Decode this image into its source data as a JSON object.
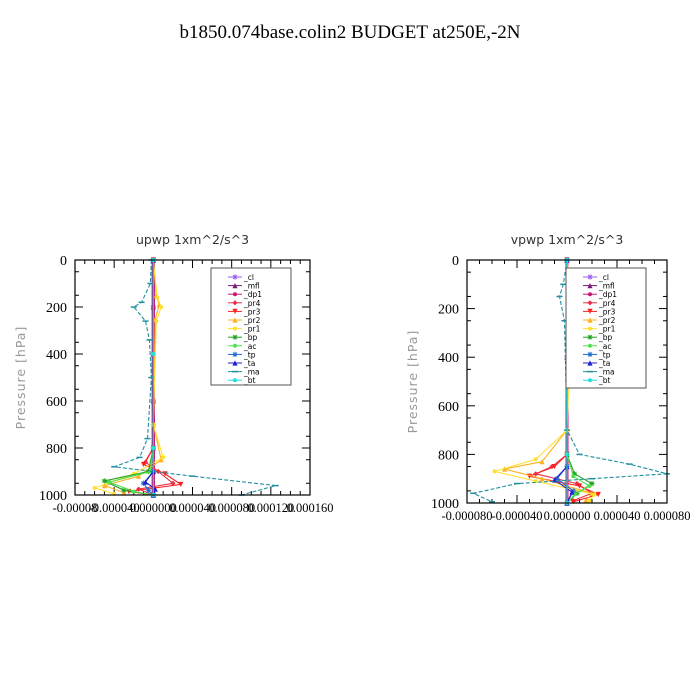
{
  "title": "b1850.074base.colin2  BUDGET at250E,-2N",
  "chart_data": [
    {
      "type": "line",
      "title": "upwp   1xm^2/s^3",
      "ylabel": "Pressure [hPa]",
      "y_axis_inverted": true,
      "ylim": [
        0,
        1000
      ],
      "yticks": [
        0,
        200,
        400,
        600,
        800,
        1000
      ],
      "xlim": [
        -8e-05,
        0.00016
      ],
      "xtick_labels": [
        "-0.00008",
        "-0.000040",
        "0.000000",
        "0.000040",
        "0.000080",
        "0.000120",
        "0.000160"
      ],
      "xtick_values": [
        -8e-05,
        -4e-05,
        0,
        4e-05,
        8e-05,
        0.00012,
        0.00016
      ],
      "legend_position": "top-right",
      "series": [
        {
          "name": "_cl",
          "color": "#9a5cf0",
          "marker": "star",
          "points": [
            [
              0,
              0
            ],
            [
              0,
              200
            ],
            [
              0,
              400
            ],
            [
              0,
              600
            ],
            [
              0,
              800
            ],
            [
              0,
              900
            ],
            [
              0,
              1000
            ]
          ]
        },
        {
          "name": "_mfl",
          "color": "#7a1a7a",
          "marker": "triangle",
          "points": [
            [
              0,
              0
            ],
            [
              0,
              200
            ],
            [
              0,
              400
            ],
            [
              0,
              600
            ],
            [
              0,
              800
            ],
            [
              0,
              900
            ],
            [
              0,
              1000
            ]
          ]
        },
        {
          "name": "_dp1",
          "color": "#c81874",
          "marker": "circle",
          "points": [
            [
              0,
              0
            ],
            [
              0,
              200
            ],
            [
              0,
              400
            ],
            [
              0,
              600
            ],
            [
              0,
              800
            ],
            [
              0,
              900
            ],
            [
              0,
              1000
            ]
          ]
        },
        {
          "name": "_pr4",
          "color": "#e8304a",
          "marker": "diamond",
          "points": [
            [
              0,
              0
            ],
            [
              0,
              700
            ],
            [
              0,
              800
            ],
            [
              -8e-06,
              860
            ],
            [
              5e-06,
              900
            ],
            [
              2e-05,
              950
            ],
            [
              -1.5e-05,
              975
            ],
            [
              0,
              1000
            ]
          ]
        },
        {
          "name": "_pr3",
          "color": "#ff2020",
          "marker": "triangle-down",
          "points": [
            [
              0,
              0
            ],
            [
              0,
              800
            ],
            [
              -1e-05,
              870
            ],
            [
              1.2e-05,
              910
            ],
            [
              2.8e-05,
              955
            ],
            [
              -2.5e-05,
              985
            ],
            [
              0,
              1000
            ]
          ]
        },
        {
          "name": "_pr2",
          "color": "#ffb020",
          "marker": "triangle",
          "points": [
            [
              0,
              0
            ],
            [
              3e-06,
              150
            ],
            [
              6e-06,
              190
            ],
            [
              2e-06,
              250
            ],
            [
              0,
              700
            ],
            [
              8e-06,
              850
            ],
            [
              -1.5e-05,
              920
            ],
            [
              -5e-05,
              960
            ],
            [
              -3e-05,
              990
            ]
          ]
        },
        {
          "name": "_pr1",
          "color": "#ffe030",
          "marker": "circle",
          "points": [
            [
              0,
              0
            ],
            [
              4e-06,
              160
            ],
            [
              8e-06,
              200
            ],
            [
              3e-06,
              260
            ],
            [
              0,
              700
            ],
            [
              1e-05,
              840
            ],
            [
              -2e-05,
              910
            ],
            [
              -6e-05,
              970
            ],
            [
              -4e-05,
              995
            ]
          ]
        },
        {
          "name": "_bp",
          "color": "#20a020",
          "marker": "star",
          "points": [
            [
              0,
              0
            ],
            [
              0,
              800
            ],
            [
              -5e-06,
              900
            ],
            [
              -5e-05,
              940
            ],
            [
              -3e-05,
              980
            ],
            [
              0,
              1000
            ]
          ]
        },
        {
          "name": "_ac",
          "color": "#50e050",
          "marker": "circle",
          "points": [
            [
              0,
              0
            ],
            [
              0,
              800
            ],
            [
              -3e-06,
              900
            ],
            [
              -4.5e-05,
              945
            ],
            [
              -2e-05,
              985
            ],
            [
              0,
              1000
            ]
          ]
        },
        {
          "name": "_tp",
          "color": "#1a6ad0",
          "marker": "star",
          "points": [
            [
              0,
              0
            ],
            [
              0,
              900
            ],
            [
              -1e-05,
              950
            ],
            [
              -5e-06,
              980
            ],
            [
              0,
              1000
            ]
          ]
        },
        {
          "name": "_ta",
          "color": "#2020d0",
          "marker": "triangle",
          "points": [
            [
              0,
              0
            ],
            [
              0,
              900
            ],
            [
              -8e-06,
              945
            ],
            [
              2e-06,
              975
            ],
            [
              0,
              1000
            ]
          ]
        },
        {
          "name": "_ma",
          "color": "#2090a0",
          "marker": "dash",
          "points": [
            [
              -2e-06,
              0
            ],
            [
              -3e-06,
              100
            ],
            [
              -1.2e-05,
              180
            ],
            [
              -2e-05,
              200
            ],
            [
              -8e-06,
              260
            ],
            [
              -4e-06,
              340
            ],
            [
              -2e-06,
              500
            ],
            [
              -6e-06,
              760
            ],
            [
              -1.4e-05,
              840
            ],
            [
              -4e-05,
              880
            ],
            [
              4e-05,
              920
            ],
            [
              0.000125,
              960
            ],
            [
              9e-05,
              1000
            ]
          ]
        },
        {
          "name": "_bt",
          "color": "#20e0e0",
          "marker": "circle",
          "points": [
            [
              0,
              0
            ],
            [
              0,
              400
            ],
            [
              0,
              800
            ],
            [
              0,
              1000
            ]
          ]
        }
      ]
    },
    {
      "type": "line",
      "title": "vpwp   1xm^2/s^3",
      "ylabel": "Pressure [hPa]",
      "y_axis_inverted": true,
      "ylim": [
        0,
        1000
      ],
      "yticks": [
        0,
        200,
        400,
        600,
        800,
        1000
      ],
      "xlim": [
        -8e-05,
        8e-05
      ],
      "xtick_labels": [
        "-0.000080",
        "-0.000040",
        "0.000000",
        "0.000040",
        "0.000080"
      ],
      "xtick_values": [
        -8e-05,
        -4e-05,
        0,
        4e-05,
        8e-05
      ],
      "legend_position": "top-right",
      "series": [
        {
          "name": "_cl",
          "color": "#9a5cf0",
          "marker": "star",
          "points": [
            [
              0,
              0
            ],
            [
              0,
              400
            ],
            [
              0,
              800
            ],
            [
              0,
              1000
            ]
          ]
        },
        {
          "name": "_mfl",
          "color": "#7a1a7a",
          "marker": "triangle",
          "points": [
            [
              0,
              0
            ],
            [
              0,
              400
            ],
            [
              0,
              800
            ],
            [
              0,
              1000
            ]
          ]
        },
        {
          "name": "_dp1",
          "color": "#c81874",
          "marker": "circle",
          "points": [
            [
              0,
              0
            ],
            [
              0,
              400
            ],
            [
              0,
              800
            ],
            [
              0,
              1000
            ]
          ]
        },
        {
          "name": "_pr4",
          "color": "#e8304a",
          "marker": "diamond",
          "points": [
            [
              0,
              0
            ],
            [
              0,
              800
            ],
            [
              -1.2e-05,
              850
            ],
            [
              -2.5e-05,
              880
            ],
            [
              8e-06,
              920
            ],
            [
              2e-05,
              960
            ],
            [
              5e-06,
              990
            ]
          ]
        },
        {
          "name": "_pr3",
          "color": "#ff2020",
          "marker": "triangle-down",
          "points": [
            [
              0,
              0
            ],
            [
              0,
              800
            ],
            [
              -1e-05,
              850
            ],
            [
              -3e-05,
              890
            ],
            [
              1e-05,
              930
            ],
            [
              2.5e-05,
              965
            ],
            [
              5e-06,
              995
            ]
          ]
        },
        {
          "name": "_pr2",
          "color": "#ffb020",
          "marker": "triangle",
          "points": [
            [
              0,
              0
            ],
            [
              2e-06,
              120
            ],
            [
              4e-06,
              200
            ],
            [
              2e-06,
              280
            ],
            [
              0,
              700
            ],
            [
              -2e-05,
              830
            ],
            [
              -5e-05,
              860
            ],
            [
              -2e-05,
              900
            ],
            [
              2e-05,
              960
            ],
            [
              1.5e-05,
              990
            ]
          ]
        },
        {
          "name": "_pr1",
          "color": "#ffe030",
          "marker": "circle",
          "points": [
            [
              0,
              0
            ],
            [
              3e-06,
              130
            ],
            [
              5e-06,
              210
            ],
            [
              3e-06,
              290
            ],
            [
              0,
              700
            ],
            [
              -2.5e-05,
              820
            ],
            [
              -5.8e-05,
              870
            ],
            [
              -2.5e-05,
              910
            ],
            [
              2.2e-05,
              965
            ],
            [
              1.8e-05,
              990
            ]
          ]
        },
        {
          "name": "_bp",
          "color": "#20a020",
          "marker": "star",
          "points": [
            [
              0,
              0
            ],
            [
              0,
              800
            ],
            [
              6e-06,
              880
            ],
            [
              2e-05,
              920
            ],
            [
              8e-06,
              960
            ],
            [
              0,
              1000
            ]
          ]
        },
        {
          "name": "_ac",
          "color": "#50e050",
          "marker": "circle",
          "points": [
            [
              0,
              0
            ],
            [
              0,
              800
            ],
            [
              5e-06,
              890
            ],
            [
              1.8e-05,
              930
            ],
            [
              6e-06,
              965
            ],
            [
              0,
              1000
            ]
          ]
        },
        {
          "name": "_tp",
          "color": "#1a6ad0",
          "marker": "star",
          "points": [
            [
              0,
              0
            ],
            [
              0,
              850
            ],
            [
              -8e-06,
              900
            ],
            [
              5e-06,
              950
            ],
            [
              0,
              1000
            ]
          ]
        },
        {
          "name": "_ta",
          "color": "#2020d0",
          "marker": "triangle",
          "points": [
            [
              0,
              0
            ],
            [
              0,
              850
            ],
            [
              -1e-05,
              905
            ],
            [
              4e-06,
              955
            ],
            [
              0,
              1000
            ]
          ]
        },
        {
          "name": "_ma",
          "color": "#2090a0",
          "marker": "dash",
          "points": [
            [
              0,
              0
            ],
            [
              -3e-06,
              100
            ],
            [
              -6e-06,
              150
            ],
            [
              -2e-06,
              250
            ],
            [
              0,
              700
            ],
            [
              1e-05,
              800
            ],
            [
              5e-05,
              840
            ],
            [
              8e-05,
              880
            ],
            [
              2e-05,
              900
            ],
            [
              -4e-05,
              920
            ],
            [
              -7.5e-05,
              960
            ],
            [
              -6e-05,
              995
            ]
          ]
        },
        {
          "name": "_bt",
          "color": "#20e0e0",
          "marker": "circle",
          "points": [
            [
              0,
              0
            ],
            [
              0,
              400
            ],
            [
              0,
              800
            ],
            [
              0,
              1000
            ]
          ]
        }
      ]
    }
  ]
}
